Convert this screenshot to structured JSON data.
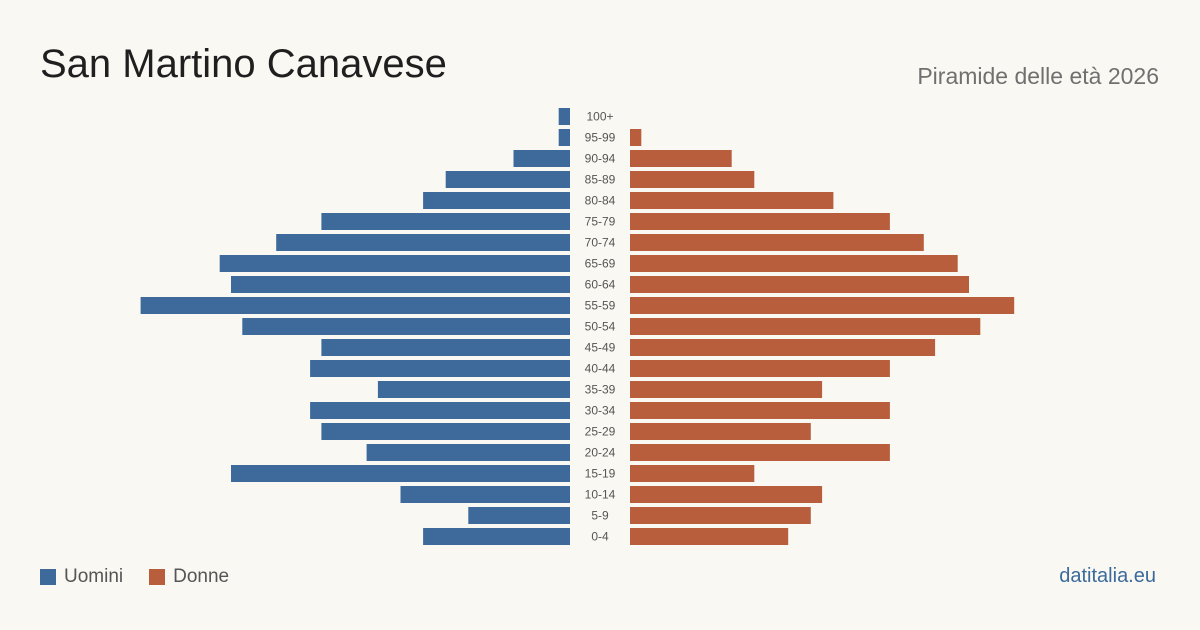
{
  "header": {
    "title": "San Martino Canavese",
    "subtitle": "Piramide delle età 2026"
  },
  "footer": {
    "brand": "datitalia.eu"
  },
  "colors": {
    "men": "#3d6a9b",
    "women": "#b95e3d",
    "label": "#555555"
  },
  "chart_data": {
    "type": "bar",
    "orientation": "horizontal-pyramid",
    "categories": [
      "100+",
      "95-99",
      "90-94",
      "85-89",
      "80-84",
      "75-79",
      "70-74",
      "65-69",
      "60-64",
      "55-59",
      "50-54",
      "45-49",
      "40-44",
      "35-39",
      "30-34",
      "25-29",
      "20-24",
      "15-19",
      "10-14",
      "5-9",
      "0-4"
    ],
    "series": [
      {
        "name": "Uomini",
        "values": [
          1,
          1,
          5,
          11,
          13,
          22,
          26,
          31,
          30,
          38,
          29,
          22,
          23,
          17,
          23,
          22,
          18,
          30,
          15,
          9,
          13
        ]
      },
      {
        "name": "Donne",
        "values": [
          0,
          1,
          9,
          11,
          18,
          23,
          26,
          29,
          30,
          34,
          31,
          27,
          23,
          17,
          23,
          16,
          23,
          11,
          17,
          16,
          14
        ]
      }
    ],
    "legend": "bottom-left"
  }
}
